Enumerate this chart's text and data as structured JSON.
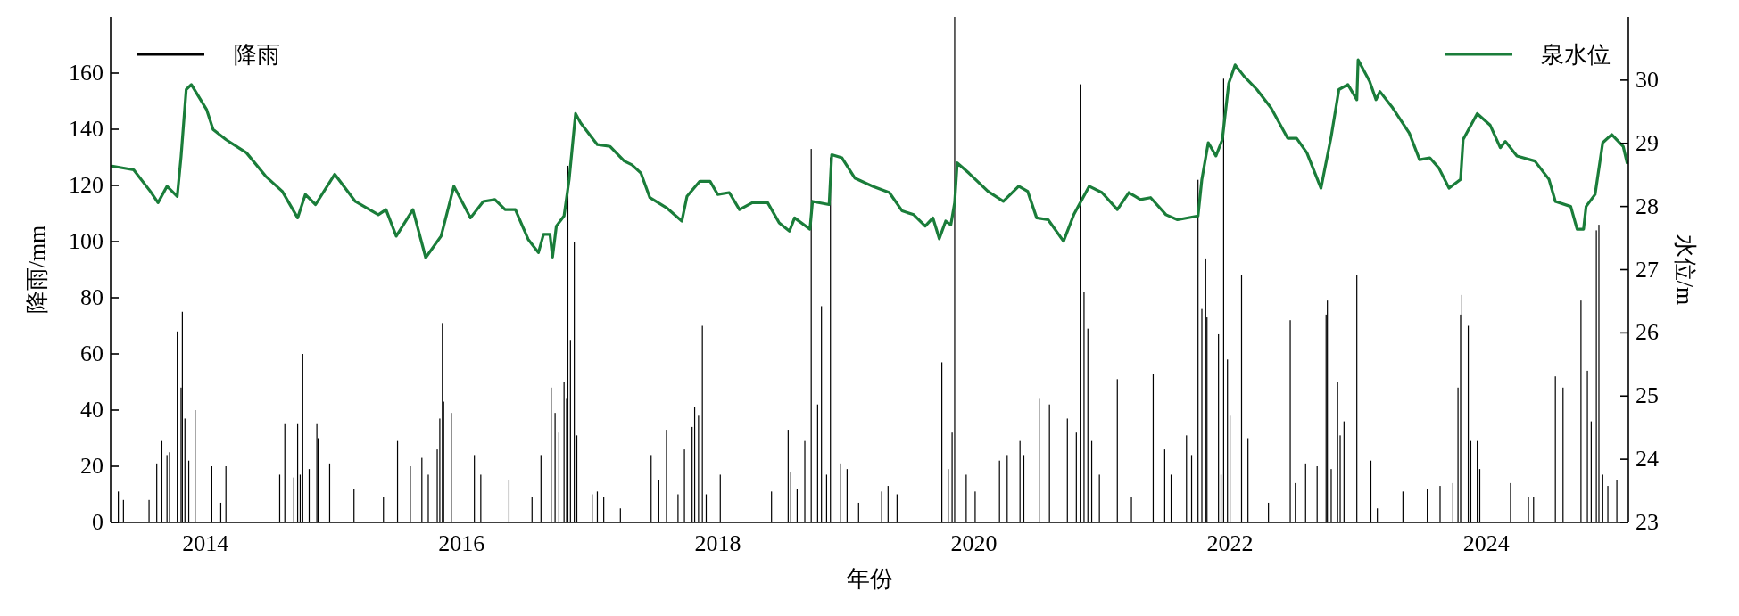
{
  "chart_data": {
    "type": "bar",
    "xlabel": "年份",
    "ylabel": "降雨/mm",
    "y2label": "水位/m",
    "xlim": [
      2013.26,
      2025.11
    ],
    "xticks": [
      2014,
      2016,
      2018,
      2020,
      2022,
      2024
    ],
    "ylim": [
      0,
      180
    ],
    "yticks": [
      0,
      20,
      40,
      60,
      80,
      100,
      120,
      140,
      160
    ],
    "y2lim": [
      23,
      31
    ],
    "y2ticks": [
      23,
      24,
      25,
      26,
      27,
      28,
      29,
      30
    ],
    "grid": false,
    "legend": "top",
    "series": [
      {
        "name": "降雨",
        "color": "#000000",
        "x": [
          2013.32,
          2013.36,
          2013.56,
          2013.62,
          2013.66,
          2013.7,
          2013.72,
          2013.78,
          2013.81,
          2013.82,
          2013.84,
          2013.87,
          2013.92,
          2014.05,
          2014.12,
          2014.16,
          2014.58,
          2014.62,
          2014.69,
          2014.72,
          2014.74,
          2014.76,
          2014.81,
          2014.87,
          2014.88,
          2014.97,
          2015.16,
          2015.39,
          2015.5,
          2015.6,
          2015.69,
          2015.74,
          2015.81,
          2015.83,
          2015.85,
          2015.86,
          2015.92,
          2016.1,
          2016.15,
          2016.37,
          2016.55,
          2016.62,
          2016.7,
          2016.73,
          2016.76,
          2016.8,
          2016.82,
          2016.83,
          2016.85,
          2016.88,
          2016.9,
          2017.02,
          2017.06,
          2017.11,
          2017.24,
          2017.48,
          2017.54,
          2017.6,
          2017.69,
          2017.74,
          2017.8,
          2017.82,
          2017.85,
          2017.88,
          2017.91,
          2018.02,
          2018.42,
          2018.55,
          2018.57,
          2018.62,
          2018.68,
          2018.73,
          2018.78,
          2018.81,
          2018.85,
          2018.88,
          2018.96,
          2019.01,
          2019.1,
          2019.28,
          2019.33,
          2019.4,
          2019.75,
          2019.8,
          2019.83,
          2019.85,
          2019.94,
          2020.01,
          2020.2,
          2020.26,
          2020.36,
          2020.39,
          2020.51,
          2020.59,
          2020.73,
          2020.8,
          2020.83,
          2020.86,
          2020.89,
          2020.92,
          2020.98,
          2021.12,
          2021.23,
          2021.4,
          2021.49,
          2021.54,
          2021.66,
          2021.7,
          2021.75,
          2021.78,
          2021.81,
          2021.82,
          2021.91,
          2021.93,
          2021.95,
          2021.98,
          2022.0,
          2022.09,
          2022.14,
          2022.3,
          2022.47,
          2022.51,
          2022.59,
          2022.68,
          2022.75,
          2022.76,
          2022.79,
          2022.84,
          2022.86,
          2022.89,
          2022.99,
          2023.1,
          2023.15,
          2023.35,
          2023.54,
          2023.64,
          2023.74,
          2023.78,
          2023.8,
          2023.81,
          2023.86,
          2023.88,
          2023.93,
          2023.95,
          2024.19,
          2024.33,
          2024.37,
          2024.54,
          2024.6,
          2024.74,
          2024.79,
          2024.82,
          2024.86,
          2024.88,
          2024.91,
          2024.95,
          2025.02
        ],
        "values": [
          11,
          8,
          8,
          21,
          29,
          24,
          25,
          68,
          48,
          75,
          37,
          22,
          40,
          20,
          7,
          20,
          17,
          35,
          16,
          35,
          17,
          60,
          19,
          35,
          30,
          21,
          12,
          9,
          29,
          20,
          23,
          17,
          26,
          37,
          71,
          43,
          39,
          24,
          17,
          15,
          9,
          24,
          48,
          39,
          32,
          50,
          44,
          127,
          65,
          100,
          31,
          10,
          11,
          9,
          5,
          24,
          15,
          33,
          10,
          26,
          34,
          41,
          38,
          70,
          10,
          17,
          11,
          33,
          18,
          12,
          29,
          133,
          42,
          77,
          17,
          130,
          21,
          19,
          7,
          11,
          13,
          10,
          57,
          19,
          32,
          180,
          17,
          11,
          22,
          24,
          29,
          24,
          44,
          42,
          37,
          32,
          156,
          82,
          69,
          29,
          17,
          51,
          9,
          53,
          26,
          17,
          31,
          24,
          122,
          76,
          94,
          73,
          67,
          17,
          158,
          58,
          38,
          88,
          30,
          7,
          72,
          14,
          21,
          20,
          74,
          79,
          19,
          50,
          31,
          36,
          88,
          22,
          5,
          11,
          12,
          13,
          14,
          48,
          74,
          81,
          70,
          29,
          29,
          19,
          14,
          9,
          9,
          52,
          48,
          79,
          54,
          36,
          104,
          106,
          17,
          13,
          15
        ]
      },
      {
        "name": "泉水位",
        "type": "line",
        "axis": "y2",
        "color": "#1a7d3a",
        "x": [
          2013.27,
          2013.44,
          2013.57,
          2013.63,
          2013.7,
          2013.78,
          2013.81,
          2013.85,
          2013.89,
          2014.01,
          2014.06,
          2014.16,
          2014.32,
          2014.47,
          2014.6,
          2014.72,
          2014.78,
          2014.86,
          2015.01,
          2015.17,
          2015.35,
          2015.41,
          2015.49,
          2015.62,
          2015.72,
          2015.84,
          2015.94,
          2016.07,
          2016.17,
          2016.26,
          2016.34,
          2016.42,
          2016.52,
          2016.6,
          2016.64,
          2016.69,
          2016.71,
          2016.74,
          2016.8,
          2016.84,
          2016.89,
          2016.93,
          2017.01,
          2017.06,
          2017.16,
          2017.27,
          2017.33,
          2017.4,
          2017.47,
          2017.6,
          2017.72,
          2017.76,
          2017.86,
          2017.94,
          2018.0,
          2018.09,
          2018.17,
          2018.27,
          2018.39,
          2018.48,
          2018.56,
          2018.6,
          2018.72,
          2018.74,
          2018.87,
          2018.89,
          2018.97,
          2019.07,
          2019.21,
          2019.34,
          2019.44,
          2019.53,
          2019.62,
          2019.68,
          2019.73,
          2019.78,
          2019.82,
          2019.85,
          2019.87,
          2019.96,
          2020.11,
          2020.23,
          2020.35,
          2020.42,
          2020.49,
          2020.58,
          2020.7,
          2020.78,
          2020.9,
          2021.0,
          2021.12,
          2021.21,
          2021.3,
          2021.38,
          2021.5,
          2021.59,
          2021.75,
          2021.78,
          2021.83,
          2021.89,
          2021.94,
          2021.99,
          2022.04,
          2022.11,
          2022.21,
          2022.32,
          2022.45,
          2022.52,
          2022.6,
          2022.71,
          2022.79,
          2022.85,
          2022.92,
          2022.99,
          2023.0,
          2023.09,
          2023.14,
          2023.17,
          2023.27,
          2023.4,
          2023.48,
          2023.56,
          2023.63,
          2023.71,
          2023.8,
          2023.82,
          2023.93,
          2024.03,
          2024.11,
          2024.15,
          2024.24,
          2024.38,
          2024.49,
          2024.54,
          2024.66,
          2024.71,
          2024.76,
          2024.78,
          2024.85,
          2024.91,
          2024.98,
          2025.07,
          2025.1
        ],
        "values": [
          28.64,
          28.58,
          28.24,
          28.06,
          28.32,
          28.16,
          28.79,
          29.85,
          29.93,
          29.53,
          29.22,
          29.06,
          28.85,
          28.48,
          28.24,
          27.82,
          28.19,
          28.03,
          28.51,
          28.08,
          27.87,
          27.95,
          27.53,
          27.95,
          27.19,
          27.53,
          28.32,
          27.82,
          28.08,
          28.11,
          27.95,
          27.95,
          27.48,
          27.27,
          27.56,
          27.56,
          27.2,
          27.69,
          27.85,
          28.43,
          29.47,
          29.32,
          29.11,
          28.98,
          28.95,
          28.72,
          28.66,
          28.53,
          28.14,
          27.98,
          27.77,
          28.16,
          28.4,
          28.4,
          28.19,
          28.22,
          27.95,
          28.06,
          28.06,
          27.74,
          27.61,
          27.82,
          27.64,
          28.08,
          28.03,
          28.82,
          28.77,
          28.45,
          28.32,
          28.22,
          27.93,
          27.87,
          27.69,
          27.82,
          27.49,
          27.77,
          27.71,
          28.06,
          28.69,
          28.53,
          28.24,
          28.08,
          28.32,
          28.24,
          27.82,
          27.79,
          27.45,
          27.87,
          28.32,
          28.22,
          27.95,
          28.22,
          28.11,
          28.14,
          27.87,
          27.79,
          27.85,
          28.43,
          29.01,
          28.8,
          29.06,
          29.95,
          30.24,
          30.06,
          29.85,
          29.56,
          29.08,
          29.08,
          28.85,
          28.29,
          29.11,
          29.85,
          29.93,
          29.69,
          30.32,
          29.98,
          29.69,
          29.82,
          29.56,
          29.16,
          28.74,
          28.77,
          28.61,
          28.29,
          28.43,
          29.06,
          29.47,
          29.29,
          28.93,
          29.03,
          28.8,
          28.72,
          28.43,
          28.08,
          28.0,
          27.64,
          27.64,
          28.0,
          28.19,
          29.01,
          29.14,
          28.95,
          28.69
        ]
      }
    ]
  }
}
